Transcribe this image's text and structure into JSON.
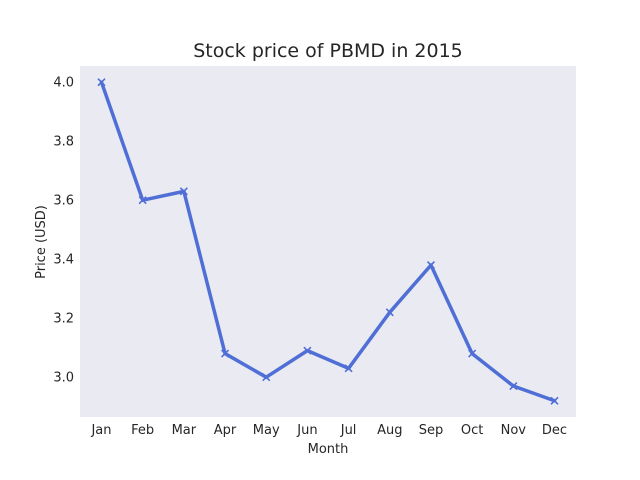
{
  "chart_data": {
    "type": "line",
    "title": "Stock price of PBMD in 2015",
    "xlabel": "Month",
    "ylabel": "Price (USD)",
    "categories": [
      "Jan",
      "Feb",
      "Mar",
      "Apr",
      "May",
      "Jun",
      "Jul",
      "Aug",
      "Sep",
      "Oct",
      "Nov",
      "Dec"
    ],
    "series": [
      {
        "name": "PBMD",
        "values": [
          4.0,
          3.6,
          3.63,
          3.08,
          3.0,
          3.09,
          3.03,
          3.22,
          3.38,
          3.08,
          2.97,
          2.92
        ],
        "color": "#4f6fd6",
        "marker": "x"
      }
    ],
    "ylim": [
      2.865,
      4.055
    ],
    "yticks": [
      "3.0",
      "3.2",
      "3.4",
      "3.6",
      "3.8",
      "4.0"
    ],
    "grid": false,
    "background": "#eaeaf2"
  }
}
